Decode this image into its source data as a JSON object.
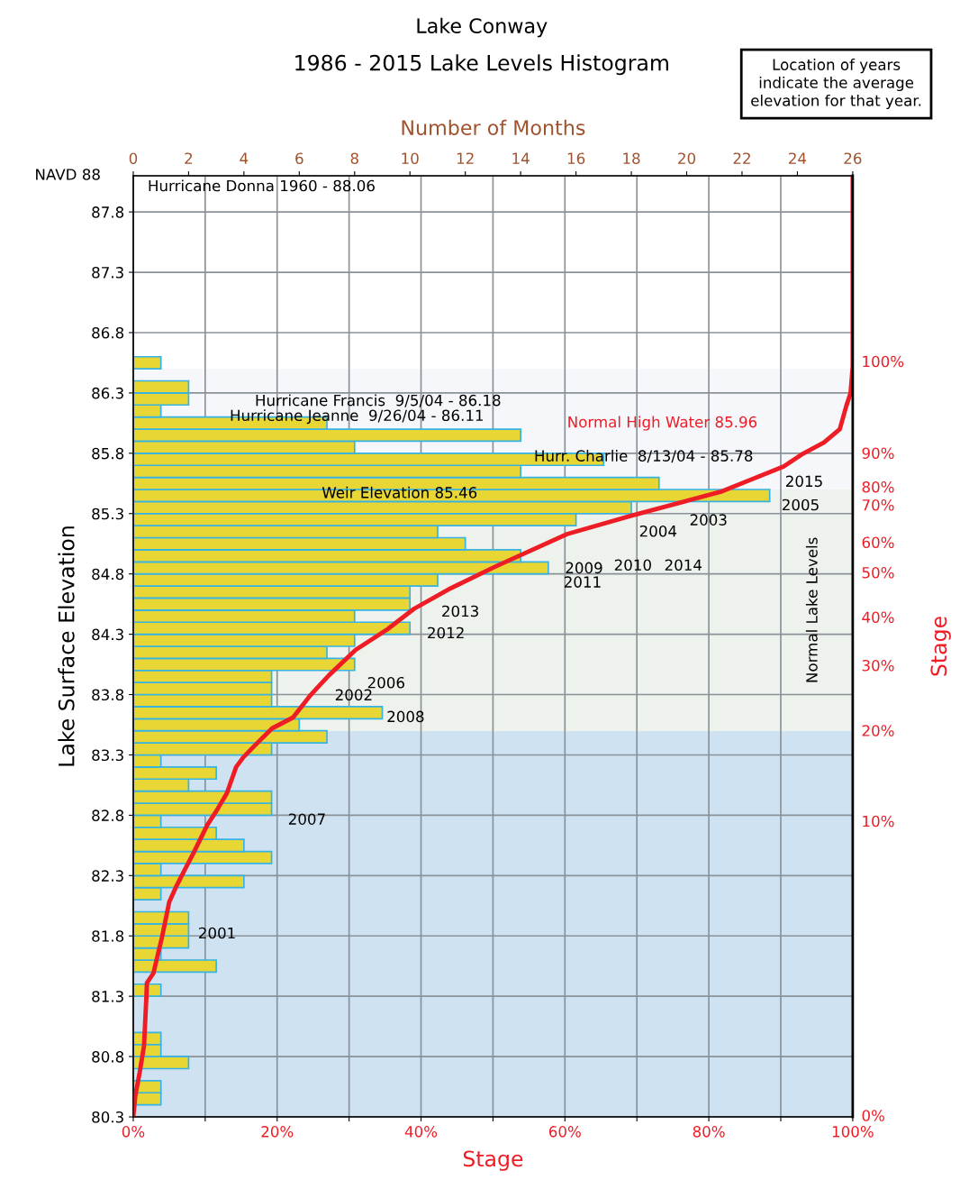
{
  "chart_data": {
    "type": "bar",
    "title": "Lake Conway",
    "subtitle": "1986 - 2015 Lake Levels Histogram",
    "x2label": "Number of Months",
    "xlabel": "Stage",
    "ylabel": "Lake Surface Elevation",
    "y2label": "Stage",
    "orientation": "horizontal",
    "x2lim": [
      0,
      26
    ],
    "x2ticks": [
      0,
      2,
      4,
      6,
      8,
      10,
      12,
      14,
      16,
      18,
      20,
      22,
      24,
      26
    ],
    "xlim": [
      0,
      100
    ],
    "xticks": [
      {
        "value": 0,
        "label": "0%"
      },
      {
        "value": 10,
        "label": null
      },
      {
        "value": 20,
        "label": "20%"
      },
      {
        "value": 30,
        "label": null
      },
      {
        "value": 40,
        "label": "40%"
      },
      {
        "value": 50,
        "label": null
      },
      {
        "value": 60,
        "label": "60%"
      },
      {
        "value": 70,
        "label": null
      },
      {
        "value": 80,
        "label": "80%"
      },
      {
        "value": 90,
        "label": null
      },
      {
        "value": 100,
        "label": "100%"
      }
    ],
    "ylim": [
      80.3,
      88.1
    ],
    "yticks": [
      80.3,
      80.8,
      81.3,
      81.8,
      82.3,
      82.8,
      83.3,
      83.8,
      84.3,
      84.8,
      85.3,
      85.8,
      86.3,
      86.8,
      87.3,
      87.8
    ],
    "grid": true,
    "series": [
      {
        "axis": "x2",
        "color": "#e8d634",
        "x": [
          80.35,
          80.45,
          80.55,
          80.65,
          80.75,
          80.85,
          80.95,
          81.05,
          81.15,
          81.25,
          81.35,
          81.45,
          81.55,
          81.65,
          81.75,
          81.85,
          81.95,
          82.05,
          82.15,
          82.25,
          82.35,
          82.45,
          82.55,
          82.65,
          82.75,
          82.85,
          82.95,
          83.05,
          83.15,
          83.25,
          83.35,
          83.45,
          83.55,
          83.65,
          83.75,
          83.85,
          83.95,
          84.05,
          84.15,
          84.25,
          84.35,
          84.45,
          84.55,
          84.65,
          84.75,
          84.85,
          84.95,
          85.05,
          85.15,
          85.25,
          85.35,
          85.45,
          85.55,
          85.65,
          85.75,
          85.85,
          85.95,
          86.05,
          86.15,
          86.25,
          86.35,
          86.45,
          86.55
        ],
        "values": [
          0,
          1,
          1,
          0,
          2,
          1,
          1,
          0,
          0,
          0,
          1,
          0,
          3,
          1,
          2,
          2,
          2,
          0,
          1,
          4,
          1,
          5,
          4,
          3,
          1,
          5,
          5,
          2,
          3,
          1,
          5,
          7,
          6,
          9,
          5,
          5,
          5,
          8,
          7,
          8,
          10,
          8,
          10,
          10,
          11,
          15,
          14,
          12,
          11,
          16,
          18,
          23,
          19,
          14,
          17,
          8,
          14,
          7,
          1,
          2,
          2,
          0,
          1
        ]
      },
      {
        "type": "line",
        "color": "#ee1c25",
        "x": [
          80.3,
          80.48,
          80.67,
          80.89,
          81.26,
          81.41,
          81.49,
          81.79,
          82.08,
          82.2,
          82.34,
          82.49,
          82.72,
          82.83,
          82.98,
          83.2,
          83.28,
          83.39,
          83.52,
          83.61,
          83.8,
          83.96,
          84.17,
          84.34,
          84.51,
          84.68,
          84.86,
          85.13,
          85.28,
          85.4,
          85.48,
          85.69,
          85.79,
          85.89,
          86.0,
          86.19,
          86.3,
          86.52,
          88.1
        ],
        "values": [
          0,
          0.3,
          0.9,
          1.5,
          1.8,
          1.9,
          2.8,
          4.0,
          5.0,
          5.9,
          7.1,
          8.4,
          10.3,
          11.5,
          13.0,
          14.3,
          15.3,
          17.1,
          19.3,
          22.2,
          24.7,
          27.2,
          30.9,
          35.3,
          39.0,
          44.1,
          50.3,
          60.3,
          69.1,
          76.6,
          81.6,
          90.4,
          92.9,
          96.0,
          98.2,
          99.1,
          99.7,
          100,
          100
        ]
      }
    ],
    "bands": [
      {
        "axis": "y",
        "from": 80.3,
        "to": 83.5,
        "color": "#cfe2f1"
      },
      {
        "axis": "y",
        "from": 83.5,
        "to": 85.5,
        "label": "Normal Lake Levels",
        "color": "#eef2ec"
      },
      {
        "axis": "y",
        "from": 85.5,
        "to": 86.5,
        "color": "#f5f7fb"
      }
    ],
    "annotations": [
      "NAVD 88",
      "Location of years\nindicate the average\nelevation for that year.",
      "Hurricane Donna 1960 - 88.06",
      "Hurricane Francis  9/5/04 - 86.18",
      "Hurricane Jeanne  9/26/04 - 86.11",
      "Normal High Water 85.96",
      "Hurr. Charlie  8/13/04 - 85.78",
      "Weir Elevation 85.46",
      "2015",
      "2005",
      "2003",
      "2004",
      "2009",
      "2010",
      "2014",
      "2011",
      "2013",
      "2012",
      "2006",
      "2002",
      "2008",
      "2007",
      "2001",
      "0%",
      "10%",
      "20%",
      "30%",
      "40%",
      "50%",
      "60%",
      "70%",
      "80%",
      "90%",
      "100%"
    ]
  }
}
